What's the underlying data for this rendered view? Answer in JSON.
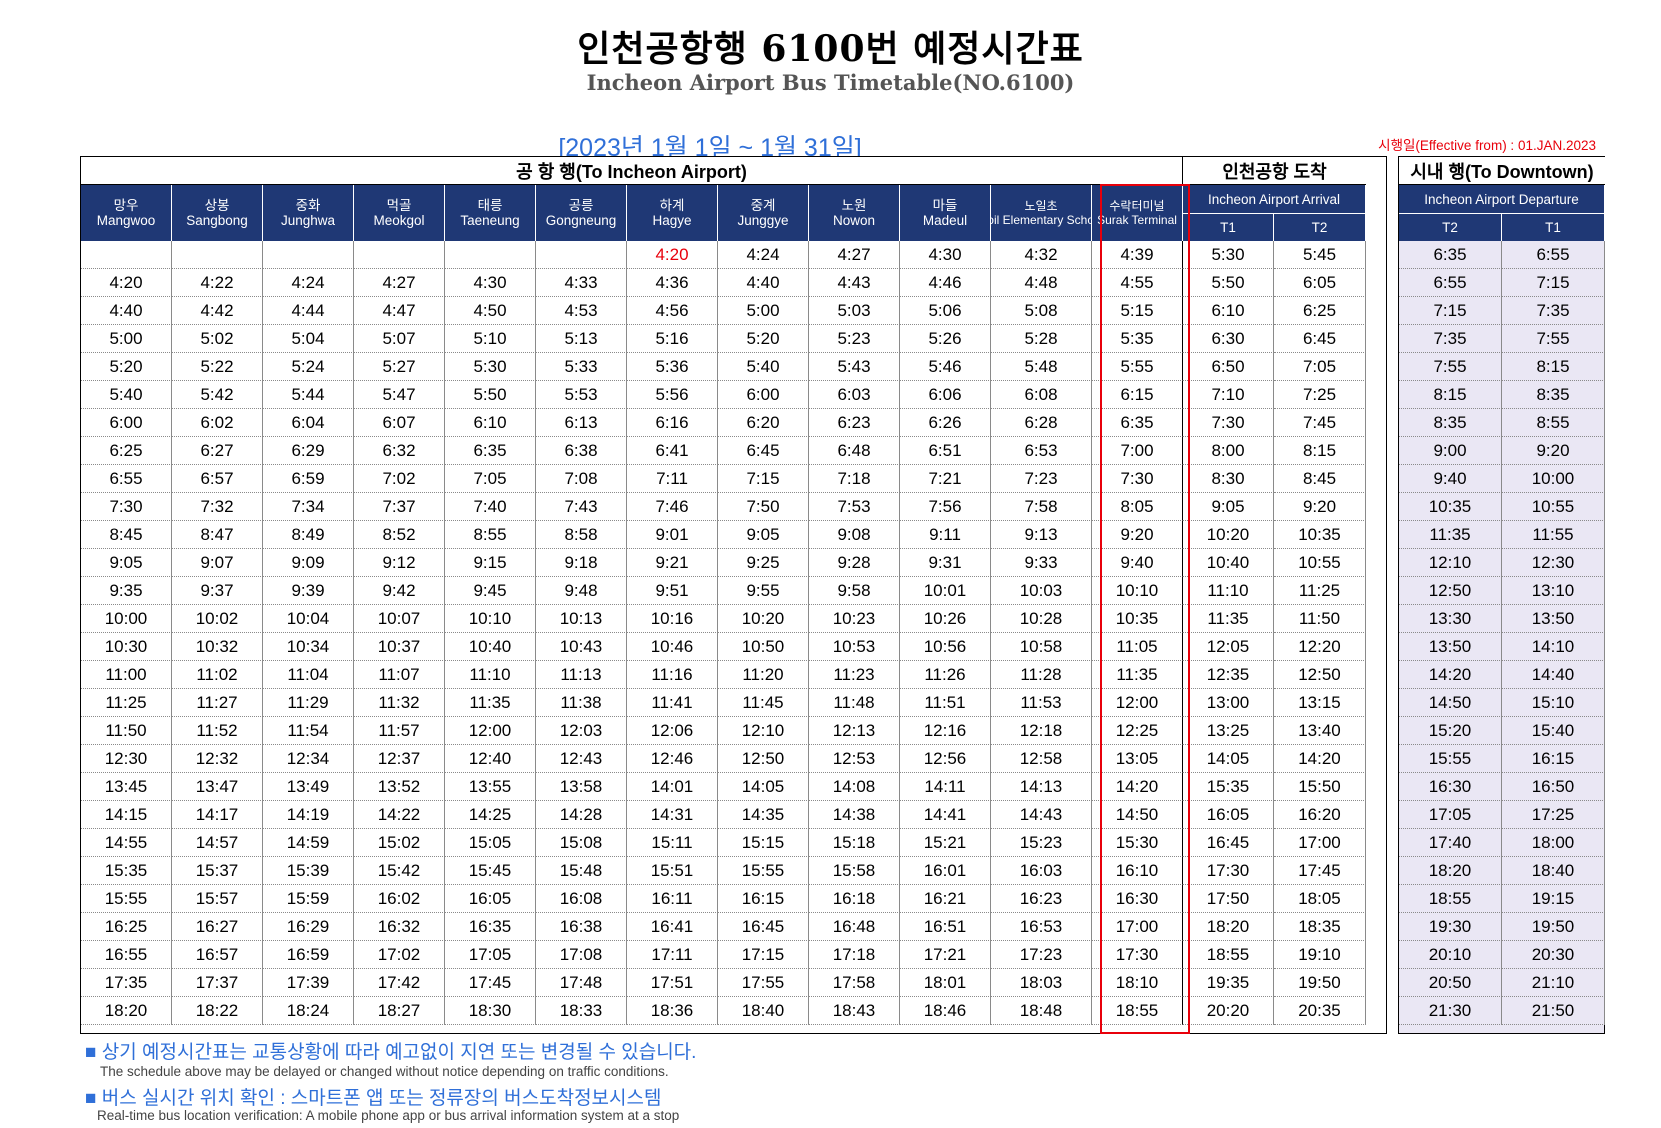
{
  "header": {
    "title": "인천공항행 6100번 예정시간표",
    "subtitle": "Incheon Airport Bus Timetable(NO.6100)",
    "period": "[2023년 1월 1일 ~ 1월 31일]",
    "effective": "시행일(Effective from) : 01.JAN.2023"
  },
  "sections": {
    "to_airport": "공 항 행(To Incheon Airport)",
    "arrival": "인천공항 도착",
    "downtown": "시내 행(To Downtown)"
  },
  "columns": {
    "stops": [
      {
        "ko": "망우",
        "en": "Mangwoo"
      },
      {
        "ko": "상봉",
        "en": "Sangbong"
      },
      {
        "ko": "중화",
        "en": "Junghwa"
      },
      {
        "ko": "먹골",
        "en": "Meokgol"
      },
      {
        "ko": "태릉",
        "en": "Taeneung"
      },
      {
        "ko": "공릉",
        "en": "Gongneung"
      },
      {
        "ko": "하계",
        "en": "Hagye"
      },
      {
        "ko": "중계",
        "en": "Junggye"
      },
      {
        "ko": "노원",
        "en": "Nowon"
      },
      {
        "ko": "마들",
        "en": "Madeul"
      },
      {
        "ko": "노일초",
        "en": "Noil Elementary School"
      },
      {
        "ko": "수락터미널",
        "en": "Surak Terminal"
      }
    ],
    "arrival_header": "Incheon Airport Arrival",
    "arrival_sub": [
      "T1",
      "T2"
    ],
    "departure_header": "Incheon Airport Departure",
    "departure_sub": [
      "T2",
      "T1"
    ]
  },
  "to_airport_rows": [
    [
      "",
      "",
      "",
      "",
      "",
      "",
      "4:20",
      "4:24",
      "4:27",
      "4:30",
      "4:32",
      "4:39",
      "5:30",
      "5:45"
    ],
    [
      "4:20",
      "4:22",
      "4:24",
      "4:27",
      "4:30",
      "4:33",
      "4:36",
      "4:40",
      "4:43",
      "4:46",
      "4:48",
      "4:55",
      "5:50",
      "6:05"
    ],
    [
      "4:40",
      "4:42",
      "4:44",
      "4:47",
      "4:50",
      "4:53",
      "4:56",
      "5:00",
      "5:03",
      "5:06",
      "5:08",
      "5:15",
      "6:10",
      "6:25"
    ],
    [
      "5:00",
      "5:02",
      "5:04",
      "5:07",
      "5:10",
      "5:13",
      "5:16",
      "5:20",
      "5:23",
      "5:26",
      "5:28",
      "5:35",
      "6:30",
      "6:45"
    ],
    [
      "5:20",
      "5:22",
      "5:24",
      "5:27",
      "5:30",
      "5:33",
      "5:36",
      "5:40",
      "5:43",
      "5:46",
      "5:48",
      "5:55",
      "6:50",
      "7:05"
    ],
    [
      "5:40",
      "5:42",
      "5:44",
      "5:47",
      "5:50",
      "5:53",
      "5:56",
      "6:00",
      "6:03",
      "6:06",
      "6:08",
      "6:15",
      "7:10",
      "7:25"
    ],
    [
      "6:00",
      "6:02",
      "6:04",
      "6:07",
      "6:10",
      "6:13",
      "6:16",
      "6:20",
      "6:23",
      "6:26",
      "6:28",
      "6:35",
      "7:30",
      "7:45"
    ],
    [
      "6:25",
      "6:27",
      "6:29",
      "6:32",
      "6:35",
      "6:38",
      "6:41",
      "6:45",
      "6:48",
      "6:51",
      "6:53",
      "7:00",
      "8:00",
      "8:15"
    ],
    [
      "6:55",
      "6:57",
      "6:59",
      "7:02",
      "7:05",
      "7:08",
      "7:11",
      "7:15",
      "7:18",
      "7:21",
      "7:23",
      "7:30",
      "8:30",
      "8:45"
    ],
    [
      "7:30",
      "7:32",
      "7:34",
      "7:37",
      "7:40",
      "7:43",
      "7:46",
      "7:50",
      "7:53",
      "7:56",
      "7:58",
      "8:05",
      "9:05",
      "9:20"
    ],
    [
      "8:45",
      "8:47",
      "8:49",
      "8:52",
      "8:55",
      "8:58",
      "9:01",
      "9:05",
      "9:08",
      "9:11",
      "9:13",
      "9:20",
      "10:20",
      "10:35"
    ],
    [
      "9:05",
      "9:07",
      "9:09",
      "9:12",
      "9:15",
      "9:18",
      "9:21",
      "9:25",
      "9:28",
      "9:31",
      "9:33",
      "9:40",
      "10:40",
      "10:55"
    ],
    [
      "9:35",
      "9:37",
      "9:39",
      "9:42",
      "9:45",
      "9:48",
      "9:51",
      "9:55",
      "9:58",
      "10:01",
      "10:03",
      "10:10",
      "11:10",
      "11:25"
    ],
    [
      "10:00",
      "10:02",
      "10:04",
      "10:07",
      "10:10",
      "10:13",
      "10:16",
      "10:20",
      "10:23",
      "10:26",
      "10:28",
      "10:35",
      "11:35",
      "11:50"
    ],
    [
      "10:30",
      "10:32",
      "10:34",
      "10:37",
      "10:40",
      "10:43",
      "10:46",
      "10:50",
      "10:53",
      "10:56",
      "10:58",
      "11:05",
      "12:05",
      "12:20"
    ],
    [
      "11:00",
      "11:02",
      "11:04",
      "11:07",
      "11:10",
      "11:13",
      "11:16",
      "11:20",
      "11:23",
      "11:26",
      "11:28",
      "11:35",
      "12:35",
      "12:50"
    ],
    [
      "11:25",
      "11:27",
      "11:29",
      "11:32",
      "11:35",
      "11:38",
      "11:41",
      "11:45",
      "11:48",
      "11:51",
      "11:53",
      "12:00",
      "13:00",
      "13:15"
    ],
    [
      "11:50",
      "11:52",
      "11:54",
      "11:57",
      "12:00",
      "12:03",
      "12:06",
      "12:10",
      "12:13",
      "12:16",
      "12:18",
      "12:25",
      "13:25",
      "13:40"
    ],
    [
      "12:30",
      "12:32",
      "12:34",
      "12:37",
      "12:40",
      "12:43",
      "12:46",
      "12:50",
      "12:53",
      "12:56",
      "12:58",
      "13:05",
      "14:05",
      "14:20"
    ],
    [
      "13:45",
      "13:47",
      "13:49",
      "13:52",
      "13:55",
      "13:58",
      "14:01",
      "14:05",
      "14:08",
      "14:11",
      "14:13",
      "14:20",
      "15:35",
      "15:50"
    ],
    [
      "14:15",
      "14:17",
      "14:19",
      "14:22",
      "14:25",
      "14:28",
      "14:31",
      "14:35",
      "14:38",
      "14:41",
      "14:43",
      "14:50",
      "16:05",
      "16:20"
    ],
    [
      "14:55",
      "14:57",
      "14:59",
      "15:02",
      "15:05",
      "15:08",
      "15:11",
      "15:15",
      "15:18",
      "15:21",
      "15:23",
      "15:30",
      "16:45",
      "17:00"
    ],
    [
      "15:35",
      "15:37",
      "15:39",
      "15:42",
      "15:45",
      "15:48",
      "15:51",
      "15:55",
      "15:58",
      "16:01",
      "16:03",
      "16:10",
      "17:30",
      "17:45"
    ],
    [
      "15:55",
      "15:57",
      "15:59",
      "16:02",
      "16:05",
      "16:08",
      "16:11",
      "16:15",
      "16:18",
      "16:21",
      "16:23",
      "16:30",
      "17:50",
      "18:05"
    ],
    [
      "16:25",
      "16:27",
      "16:29",
      "16:32",
      "16:35",
      "16:38",
      "16:41",
      "16:45",
      "16:48",
      "16:51",
      "16:53",
      "17:00",
      "18:20",
      "18:35"
    ],
    [
      "16:55",
      "16:57",
      "16:59",
      "17:02",
      "17:05",
      "17:08",
      "17:11",
      "17:15",
      "17:18",
      "17:21",
      "17:23",
      "17:30",
      "18:55",
      "19:10"
    ],
    [
      "17:35",
      "17:37",
      "17:39",
      "17:42",
      "17:45",
      "17:48",
      "17:51",
      "17:55",
      "17:58",
      "18:01",
      "18:03",
      "18:10",
      "19:35",
      "19:50"
    ],
    [
      "18:20",
      "18:22",
      "18:24",
      "18:27",
      "18:30",
      "18:33",
      "18:36",
      "18:40",
      "18:43",
      "18:46",
      "18:48",
      "18:55",
      "20:20",
      "20:35"
    ]
  ],
  "downtown_rows": [
    [
      "6:35",
      "6:55"
    ],
    [
      "6:55",
      "7:15"
    ],
    [
      "7:15",
      "7:35"
    ],
    [
      "7:35",
      "7:55"
    ],
    [
      "7:55",
      "8:15"
    ],
    [
      "8:15",
      "8:35"
    ],
    [
      "8:35",
      "8:55"
    ],
    [
      "9:00",
      "9:20"
    ],
    [
      "9:40",
      "10:00"
    ],
    [
      "10:35",
      "10:55"
    ],
    [
      "11:35",
      "11:55"
    ],
    [
      "12:10",
      "12:30"
    ],
    [
      "12:50",
      "13:10"
    ],
    [
      "13:30",
      "13:50"
    ],
    [
      "13:50",
      "14:10"
    ],
    [
      "14:20",
      "14:40"
    ],
    [
      "14:50",
      "15:10"
    ],
    [
      "15:20",
      "15:40"
    ],
    [
      "15:55",
      "16:15"
    ],
    [
      "16:30",
      "16:50"
    ],
    [
      "17:05",
      "17:25"
    ],
    [
      "17:40",
      "18:00"
    ],
    [
      "18:20",
      "18:40"
    ],
    [
      "18:55",
      "19:15"
    ],
    [
      "19:30",
      "19:50"
    ],
    [
      "20:10",
      "20:30"
    ],
    [
      "20:50",
      "21:10"
    ],
    [
      "21:30",
      "21:50"
    ]
  ],
  "highlight": {
    "row": 0,
    "col": 6,
    "color": "#e8000b"
  },
  "colors": {
    "header_bg": "#1f3875",
    "accent_blue": "#2f6fd8",
    "red": "#e8000b",
    "downtown_bg": "#eae7f4"
  },
  "notes": [
    {
      "bullet": "■",
      "ko": "상기 예정시간표는 교통상황에 따라 예고없이 지연 또는 변경될 수 있습니다.",
      "en": "The schedule above may be delayed or changed without notice depending on traffic conditions."
    },
    {
      "bullet": "■",
      "ko": "버스 실시간 위치 확인 : 스마트폰 앱 또는 정류장의 버스도착정보시스템",
      "en": "Real-time bus location verification: A mobile phone app or bus arrival information system at a stop"
    }
  ]
}
